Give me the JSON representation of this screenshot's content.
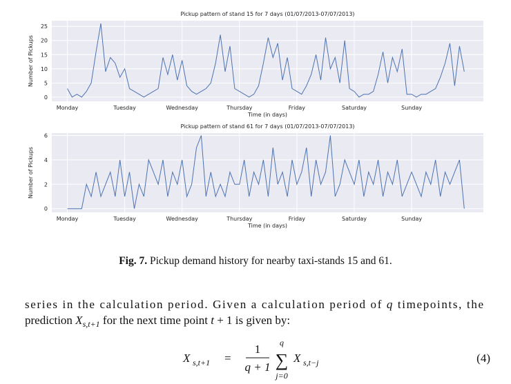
{
  "chart_data": [
    {
      "type": "line",
      "title": "Pickup pattern of stand 15 for 7 days (01/07/2013-07/07/2013)",
      "x_label": "Time (in days)",
      "y_label": "Number of Pickups",
      "color": "#4c72b0",
      "grid": true,
      "x": [
        0,
        2,
        4,
        6,
        8,
        10,
        12,
        14,
        16,
        18,
        20,
        22,
        24,
        26,
        28,
        30,
        32,
        34,
        36,
        38,
        40,
        42,
        44,
        46,
        48,
        50,
        52,
        54,
        56,
        58,
        60,
        62,
        64,
        66,
        68,
        70,
        72,
        74,
        76,
        78,
        80,
        82,
        84,
        86,
        88,
        90,
        92,
        94,
        96,
        98,
        100,
        102,
        104,
        106,
        108,
        110,
        112,
        114,
        116,
        118,
        120,
        122,
        124,
        126,
        128,
        130,
        132,
        134,
        136,
        138,
        140,
        142,
        144,
        146,
        148,
        150,
        152,
        154,
        156,
        158,
        160,
        162,
        164,
        166
      ],
      "values": [
        3,
        0,
        1,
        0,
        2,
        5,
        16,
        26,
        9,
        14,
        12,
        7,
        10,
        3,
        2,
        1,
        0,
        1,
        2,
        3,
        14,
        8,
        15,
        6,
        13,
        4,
        2,
        1,
        2,
        3,
        5,
        12,
        22,
        9,
        18,
        3,
        2,
        1,
        0,
        1,
        4,
        12,
        21,
        14,
        19,
        6,
        14,
        3,
        2,
        1,
        4,
        8,
        15,
        6,
        21,
        10,
        14,
        5,
        20,
        3,
        2,
        0,
        1,
        1,
        2,
        8,
        16,
        5,
        14,
        9,
        17,
        1,
        1,
        0,
        1,
        1,
        2,
        3,
        7,
        12,
        19,
        4,
        18,
        9
      ],
      "xlim": [
        -6.5,
        174
      ],
      "xticks": [
        {
          "value": 0,
          "label": "Monday"
        },
        {
          "value": 24,
          "label": "Tuesday"
        },
        {
          "value": 48,
          "label": "Wednesday"
        },
        {
          "value": 72,
          "label": "Thursday"
        },
        {
          "value": 96,
          "label": "Friday"
        },
        {
          "value": 120,
          "label": "Saturday"
        },
        {
          "value": 144,
          "label": "Sunday"
        }
      ],
      "ylim": [
        -1.5,
        27
      ],
      "yticks": [
        0,
        5,
        10,
        15,
        20,
        25
      ]
    },
    {
      "type": "line",
      "title": "Pickup pattern of stand 61 for 7 days (01/07/2013-07/07/2013)",
      "x_label": "Time (in days)",
      "y_label": "Number of Pickups",
      "color": "#4c72b0",
      "grid": true,
      "x": [
        0,
        2,
        4,
        6,
        8,
        10,
        12,
        14,
        16,
        18,
        20,
        22,
        24,
        26,
        28,
        30,
        32,
        34,
        36,
        38,
        40,
        42,
        44,
        46,
        48,
        50,
        52,
        54,
        56,
        58,
        60,
        62,
        64,
        66,
        68,
        70,
        72,
        74,
        76,
        78,
        80,
        82,
        84,
        86,
        88,
        90,
        92,
        94,
        96,
        98,
        100,
        102,
        104,
        106,
        108,
        110,
        112,
        114,
        116,
        118,
        120,
        122,
        124,
        126,
        128,
        130,
        132,
        134,
        136,
        138,
        140,
        142,
        144,
        146,
        148,
        150,
        152,
        154,
        156,
        158,
        160,
        162,
        164,
        166
      ],
      "values": [
        0,
        0,
        0,
        0,
        2,
        1,
        3,
        1,
        2,
        3,
        1,
        4,
        1,
        3,
        0,
        2,
        1,
        4,
        3,
        2,
        4,
        1,
        3,
        2,
        4,
        1,
        2,
        5,
        6,
        1,
        3,
        1,
        2,
        1,
        3,
        2,
        2,
        4,
        1,
        3,
        2,
        4,
        1,
        5,
        2,
        3,
        1,
        4,
        2,
        3,
        5,
        1,
        4,
        2,
        3,
        6,
        1,
        2,
        4,
        3,
        2,
        4,
        1,
        3,
        2,
        4,
        1,
        3,
        2,
        4,
        1,
        2,
        3,
        2,
        1,
        3,
        2,
        4,
        1,
        3,
        2,
        3,
        4,
        0
      ],
      "xlim": [
        -6.5,
        174
      ],
      "xticks": [
        {
          "value": 0,
          "label": "Monday"
        },
        {
          "value": 24,
          "label": "Tuesday"
        },
        {
          "value": 48,
          "label": "Wednesday"
        },
        {
          "value": 72,
          "label": "Thursday"
        },
        {
          "value": 96,
          "label": "Friday"
        },
        {
          "value": 120,
          "label": "Saturday"
        },
        {
          "value": 144,
          "label": "Sunday"
        }
      ],
      "ylim": [
        -0.3,
        6.2
      ],
      "yticks": [
        0,
        2,
        4,
        6
      ]
    }
  ],
  "caption": {
    "label": "Fig. 7.",
    "text": " Pickup demand history for nearby taxi-stands 15 and 61."
  },
  "paragraph": [
    [
      "series in the calculation period. Given a calculation period of ",
      "q",
      " timepoints, the"
    ],
    [
      "prediction ",
      "X",
      "s,t+1",
      " for the next time point ",
      "t",
      " + 1 is given by:"
    ]
  ],
  "equation": {
    "lhs": "X",
    "lhs_sub": "s,t+1",
    "equals": "=",
    "numerator": "1",
    "denominator": "q + 1",
    "sum": "∑",
    "sum_top": "q",
    "sum_bottom": "j=0",
    "term": "X",
    "term_sub": "s,t−j",
    "number": "(4)"
  }
}
